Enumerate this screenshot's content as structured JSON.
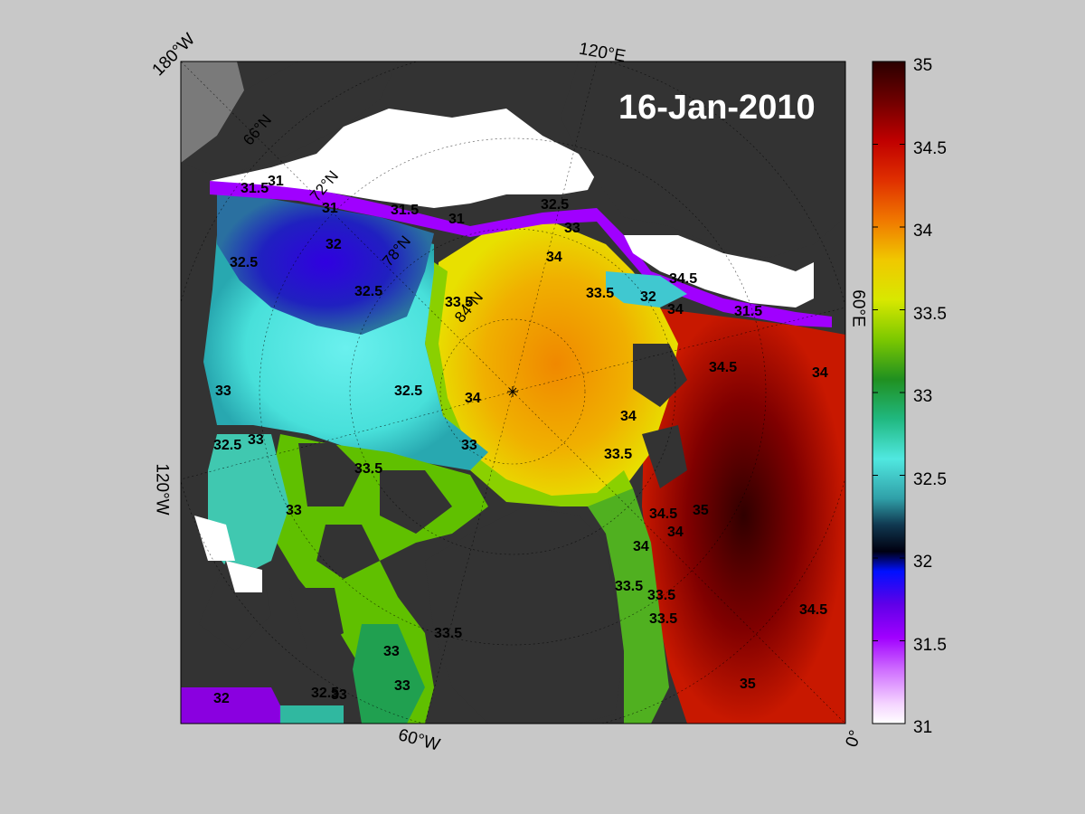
{
  "date_label": "16-Jan-2010",
  "longitude_labels": {
    "top": "120°E",
    "top_left": "180°W",
    "left": "120°W",
    "bottom": "60°W",
    "bottom_right": "0°",
    "right": "60°E"
  },
  "latitude_labels": [
    "66°N",
    "72°N",
    "78°N",
    "84°N"
  ],
  "colorbar": {
    "min": 31,
    "max": 35,
    "ticks": [
      "35",
      "34.5",
      "34",
      "33.5",
      "33",
      "32.5",
      "32",
      "31.5",
      "31"
    ],
    "colors": [
      "#2a0000",
      "#8c0000",
      "#d42000",
      "#f07000",
      "#f0c000",
      "#e6e600",
      "#9ed600",
      "#30a000",
      "#108030",
      "#20c890",
      "#50e8e0",
      "#30a8b0",
      "#104060",
      "#000000",
      "#0018ff",
      "#6a00e0",
      "#a000ff",
      "#d070ff",
      "#f0c8ff",
      "#ffffff"
    ]
  },
  "contour_labels": [
    "31.5",
    "31",
    "31",
    "31.5",
    "31",
    "32",
    "32.5",
    "32.5",
    "33",
    "32.5",
    "33",
    "32.5",
    "33",
    "33",
    "33.5",
    "34",
    "33.5",
    "33.5",
    "34",
    "34",
    "33",
    "33.5",
    "34",
    "34.5",
    "34.5",
    "34",
    "34.5",
    "33.5",
    "33.5",
    "34.5",
    "34",
    "33",
    "33",
    "32",
    "32.5",
    "33",
    "33.5",
    "35",
    "35",
    "32",
    "34",
    "33.5",
    "31.5",
    "32.5"
  ],
  "colors": {
    "background": "#c8c8c8",
    "land": "#333333",
    "ice": "#ffffff"
  }
}
